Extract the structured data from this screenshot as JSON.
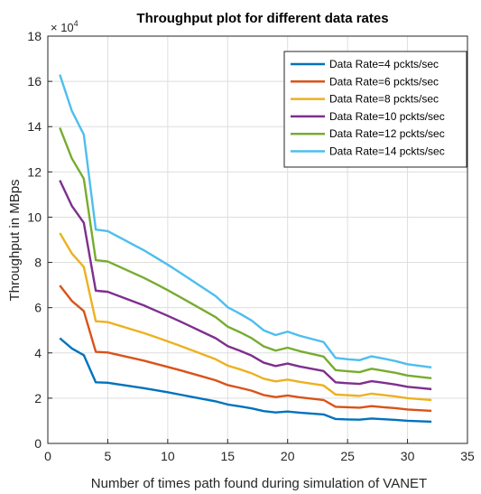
{
  "chart_data": {
    "type": "line",
    "title": "Throughput plot for different data rates",
    "xlabel": "Number of times path found during simulation of VANET",
    "ylabel": "Throughput in MBps",
    "y_exponent": {
      "base": "× 10",
      "power": "4"
    },
    "xlim": [
      0,
      35
    ],
    "ylim": [
      0,
      18
    ],
    "xticks": [
      "0",
      "5",
      "10",
      "15",
      "20",
      "25",
      "30",
      "35"
    ],
    "yticks": [
      "0",
      "2",
      "4",
      "6",
      "8",
      "10",
      "12",
      "14",
      "16",
      "18"
    ],
    "grid": true,
    "legend_position": "top-right",
    "x": [
      1,
      2,
      3,
      4,
      5,
      6,
      7,
      8,
      9,
      10,
      11,
      12,
      13,
      14,
      15,
      16,
      17,
      18,
      19,
      20,
      21,
      22,
      23,
      24,
      25,
      26,
      27,
      28,
      29,
      30,
      31,
      32
    ],
    "series": [
      {
        "name": "Data Rate=4 pckts/sec",
        "color": "#0072BD",
        "values": [
          4.65,
          4.2,
          3.9,
          2.7,
          2.68,
          2.6,
          2.52,
          2.44,
          2.35,
          2.26,
          2.16,
          2.06,
          1.96,
          1.86,
          1.72,
          1.64,
          1.55,
          1.43,
          1.37,
          1.41,
          1.36,
          1.32,
          1.28,
          1.08,
          1.06,
          1.05,
          1.1,
          1.07,
          1.04,
          1.0,
          0.98,
          0.96
        ]
      },
      {
        "name": "Data Rate=6 pckts/sec",
        "color": "#D95319",
        "values": [
          6.98,
          6.3,
          5.85,
          4.05,
          4.02,
          3.9,
          3.78,
          3.66,
          3.52,
          3.38,
          3.24,
          3.09,
          2.94,
          2.79,
          2.58,
          2.46,
          2.33,
          2.14,
          2.05,
          2.12,
          2.04,
          1.98,
          1.92,
          1.62,
          1.6,
          1.58,
          1.65,
          1.6,
          1.56,
          1.5,
          1.47,
          1.44
        ]
      },
      {
        "name": "Data Rate=8 pckts/sec",
        "color": "#EDB120",
        "values": [
          9.3,
          8.4,
          7.8,
          5.4,
          5.36,
          5.2,
          5.04,
          4.88,
          4.7,
          4.51,
          4.32,
          4.12,
          3.92,
          3.72,
          3.44,
          3.28,
          3.1,
          2.86,
          2.74,
          2.82,
          2.72,
          2.64,
          2.56,
          2.16,
          2.13,
          2.1,
          2.2,
          2.14,
          2.08,
          2.0,
          1.96,
          1.92
        ]
      },
      {
        "name": "Data Rate=10 pckts/sec",
        "color": "#7E2F8E",
        "values": [
          11.63,
          10.5,
          9.75,
          6.75,
          6.7,
          6.5,
          6.3,
          6.1,
          5.87,
          5.64,
          5.4,
          5.15,
          4.9,
          4.65,
          4.3,
          4.1,
          3.88,
          3.57,
          3.42,
          3.53,
          3.4,
          3.3,
          3.2,
          2.7,
          2.66,
          2.63,
          2.75,
          2.68,
          2.6,
          2.5,
          2.45,
          2.4
        ]
      },
      {
        "name": "Data Rate=12 pckts/sec",
        "color": "#77AC30",
        "values": [
          13.95,
          12.6,
          11.7,
          8.1,
          8.04,
          7.8,
          7.56,
          7.32,
          7.05,
          6.77,
          6.48,
          6.18,
          5.88,
          5.58,
          5.16,
          4.92,
          4.65,
          4.29,
          4.1,
          4.23,
          4.08,
          3.96,
          3.84,
          3.24,
          3.19,
          3.15,
          3.3,
          3.21,
          3.12,
          3.0,
          2.94,
          2.88
        ]
      },
      {
        "name": "Data Rate=14 pckts/sec",
        "color": "#4DBEEE",
        "values": [
          16.3,
          14.7,
          13.65,
          9.45,
          9.38,
          9.1,
          8.82,
          8.54,
          8.22,
          7.9,
          7.56,
          7.21,
          6.86,
          6.51,
          6.02,
          5.74,
          5.43,
          5.0,
          4.79,
          4.94,
          4.76,
          4.62,
          4.48,
          3.78,
          3.72,
          3.68,
          3.85,
          3.75,
          3.64,
          3.5,
          3.43,
          3.36
        ]
      }
    ]
  }
}
